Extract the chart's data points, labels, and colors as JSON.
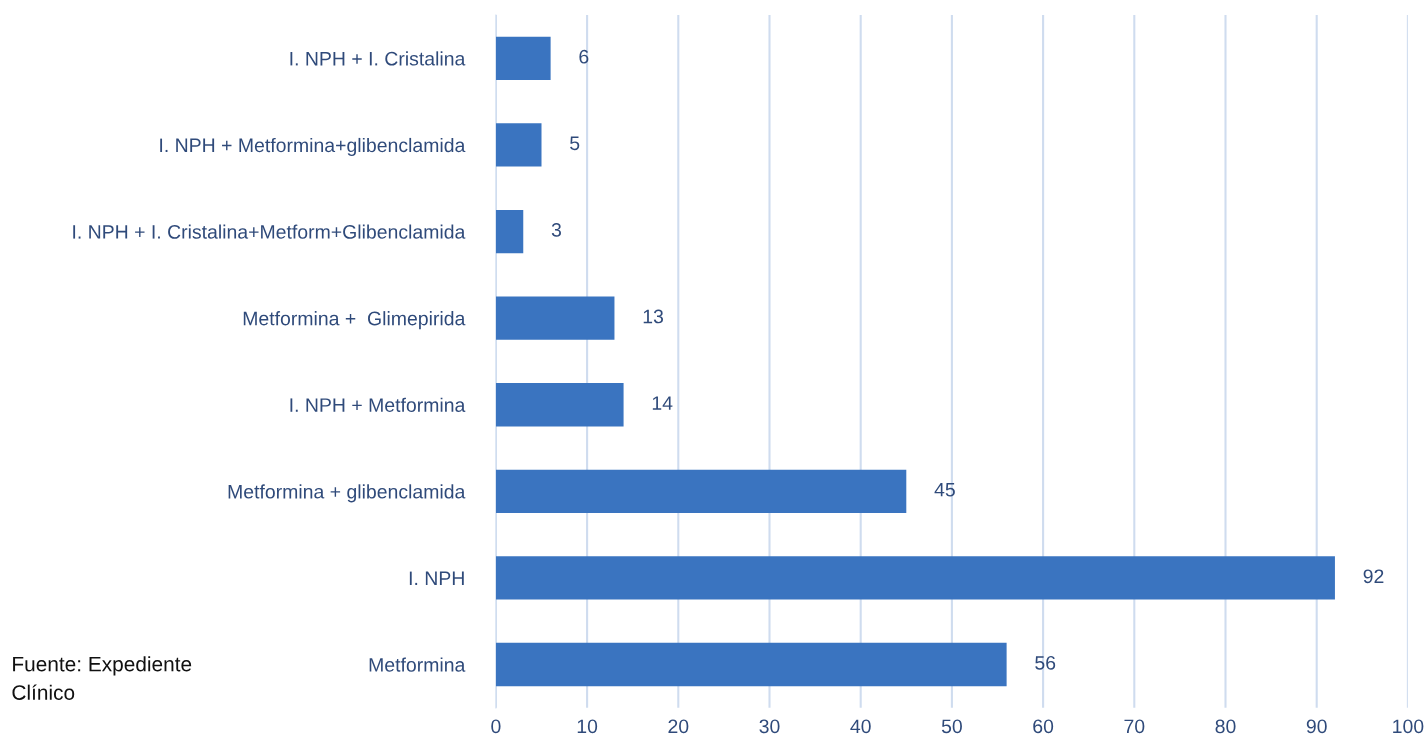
{
  "chart_data": {
    "type": "bar",
    "orientation": "horizontal",
    "categories": [
      "I. NPH + I. Cristalina",
      "I. NPH + Metformina+glibenclamida",
      "I. NPH + I. Cristalina+Metform+Glibenclamida",
      "Metformina +  Glimepirida",
      "I. NPH + Metformina",
      "Metformina + glibenclamida",
      "I. NPH",
      "Metformina"
    ],
    "values": [
      6,
      5,
      3,
      13,
      14,
      45,
      92,
      56
    ],
    "color": "#3a74c0",
    "xlim": [
      0,
      100
    ],
    "xticks": [
      0,
      10,
      20,
      30,
      40,
      50,
      60,
      70,
      80,
      90,
      100
    ],
    "grid": "x",
    "data_labels": true,
    "annotations": [
      "Fuente: Expediente\nClínico"
    ]
  }
}
